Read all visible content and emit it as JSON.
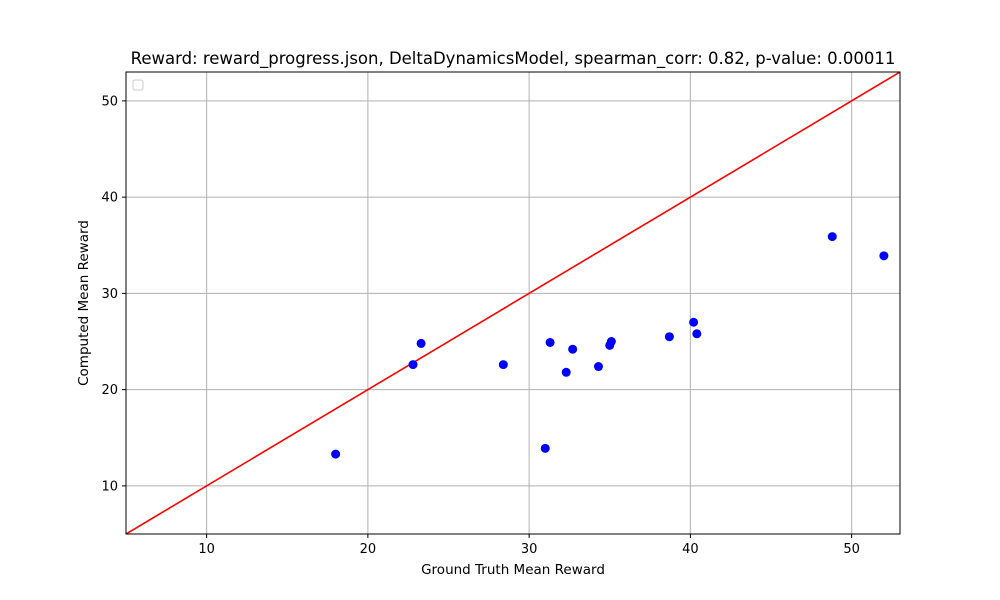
{
  "chart_data": {
    "type": "scatter",
    "title": "Reward: reward_progress.json, DeltaDynamicsModel, spearman_corr: 0.82, p-value: 0.00011",
    "xlabel": "Ground Truth Mean Reward",
    "ylabel": "Computed Mean Reward",
    "xlim": [
      5,
      53
    ],
    "ylim": [
      5,
      53
    ],
    "xticks": [
      10,
      20,
      30,
      40,
      50
    ],
    "yticks": [
      10,
      20,
      30,
      40,
      50
    ],
    "grid": true,
    "legend": "upper-left (empty)",
    "points": {
      "color": "#0000ff",
      "x": [
        18.0,
        22.8,
        23.3,
        28.4,
        31.0,
        31.3,
        32.3,
        32.7,
        34.3,
        35.0,
        35.1,
        38.7,
        40.2,
        40.4,
        48.8,
        52.0
      ],
      "y": [
        13.3,
        22.6,
        24.8,
        22.6,
        13.9,
        24.9,
        21.8,
        24.2,
        22.4,
        24.6,
        25.0,
        25.5,
        27.0,
        25.8,
        35.9,
        33.9
      ]
    },
    "reference_line": {
      "color": "#ff0000",
      "x": [
        5,
        53
      ],
      "y": [
        5,
        53
      ]
    }
  }
}
